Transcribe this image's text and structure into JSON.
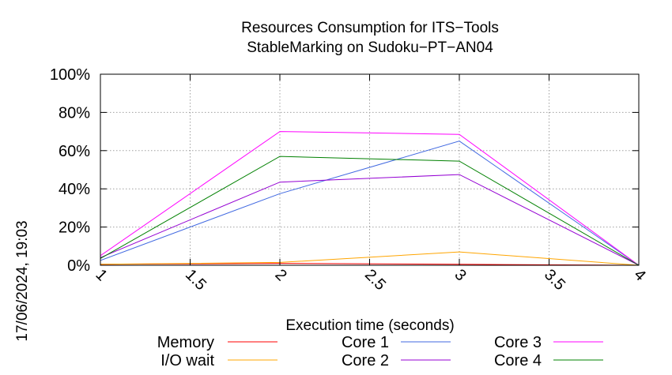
{
  "chart_data": {
    "type": "line",
    "title": "Resources Consumption for ITS−Tools",
    "subtitle": "StableMarking on Sudoku−PT−AN04",
    "xlabel": "Execution time (seconds)",
    "ylabel": "",
    "side_label": "17/06/2024, 19:03",
    "xlim": [
      1,
      4
    ],
    "ylim": [
      0,
      100
    ],
    "x_ticks": [
      "1",
      "1.5",
      "2",
      "2.5",
      "3",
      "3.5",
      "4"
    ],
    "x_tick_values": [
      1,
      1.5,
      2,
      2.5,
      3,
      3.5,
      4
    ],
    "y_ticks": [
      "0%",
      "20%",
      "40%",
      "60%",
      "80%",
      "100%"
    ],
    "y_tick_values": [
      0,
      20,
      40,
      60,
      80,
      100
    ],
    "grid": true,
    "legend_position": "bottom",
    "x": [
      1,
      2,
      3,
      4
    ],
    "series": [
      {
        "name": "Memory",
        "color": "#ff0000",
        "values": [
          0.5,
          1,
          0.5,
          0
        ]
      },
      {
        "name": "I/O wait",
        "color": "#ffa500",
        "values": [
          0.5,
          1.5,
          7,
          0
        ]
      },
      {
        "name": "Core 1",
        "color": "#4169e1",
        "values": [
          2.5,
          37.5,
          65,
          0
        ]
      },
      {
        "name": "Core 2",
        "color": "#9400d3",
        "values": [
          4,
          43.5,
          47.5,
          0
        ]
      },
      {
        "name": "Core 3",
        "color": "#ff00ff",
        "values": [
          5,
          70,
          68.5,
          0
        ]
      },
      {
        "name": "Core 4",
        "color": "#008000",
        "values": [
          3.5,
          57,
          54.5,
          0
        ]
      }
    ]
  }
}
